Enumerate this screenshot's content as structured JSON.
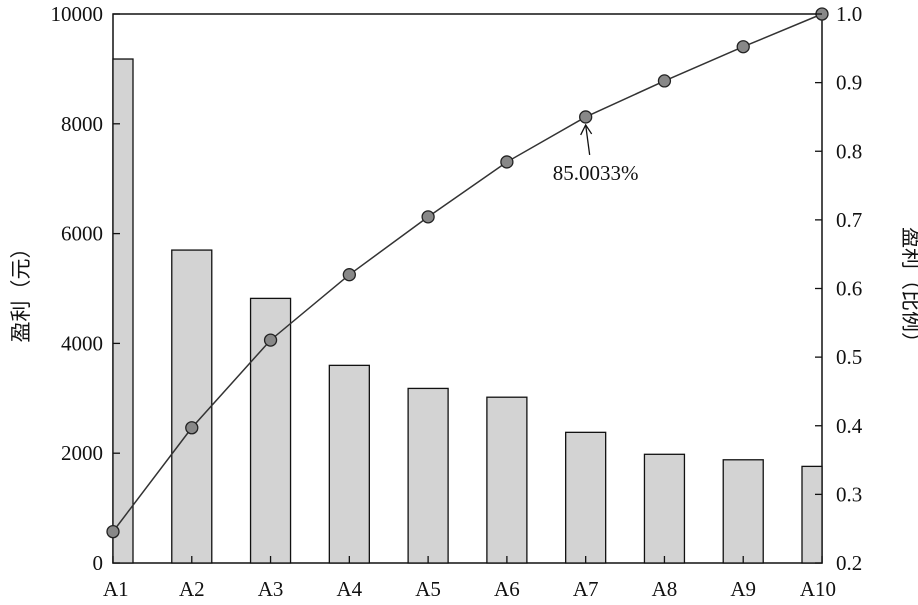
{
  "chart_data": {
    "type": "bar",
    "categories": [
      "A1",
      "A2",
      "A3",
      "A4",
      "A5",
      "A6",
      "A7",
      "A8",
      "A9",
      "A10"
    ],
    "series": [
      {
        "axis": "left",
        "kind": "bar",
        "values": [
          9180,
          5700,
          4820,
          3600,
          3180,
          3020,
          2380,
          1980,
          1880,
          1760
        ]
      },
      {
        "axis": "right",
        "kind": "line",
        "values": [
          0.2457,
          0.3971,
          0.5248,
          0.6201,
          0.7044,
          0.7844,
          0.85,
          0.9025,
          0.9523,
          1.0
        ]
      }
    ],
    "ylabel": "盈利（元）",
    "ylabel_right": "盈利（比例）",
    "ylim": [
      0,
      10000
    ],
    "ylim_right": [
      0.2,
      1.0
    ],
    "yticks": [
      "0",
      "2000",
      "4000",
      "6000",
      "8000",
      "10000"
    ],
    "yticks_right": [
      "0.2",
      "0.3",
      "0.4",
      "0.5",
      "0.6",
      "0.7",
      "0.8",
      "0.9",
      "1.0"
    ],
    "annotation": {
      "text": "85.0033%",
      "category": "A7"
    },
    "grid": false,
    "colors": {
      "bar_fill": "#d3d3d3",
      "bar_stroke": "#111111",
      "line": "#333333",
      "marker_fill": "#888888"
    }
  }
}
